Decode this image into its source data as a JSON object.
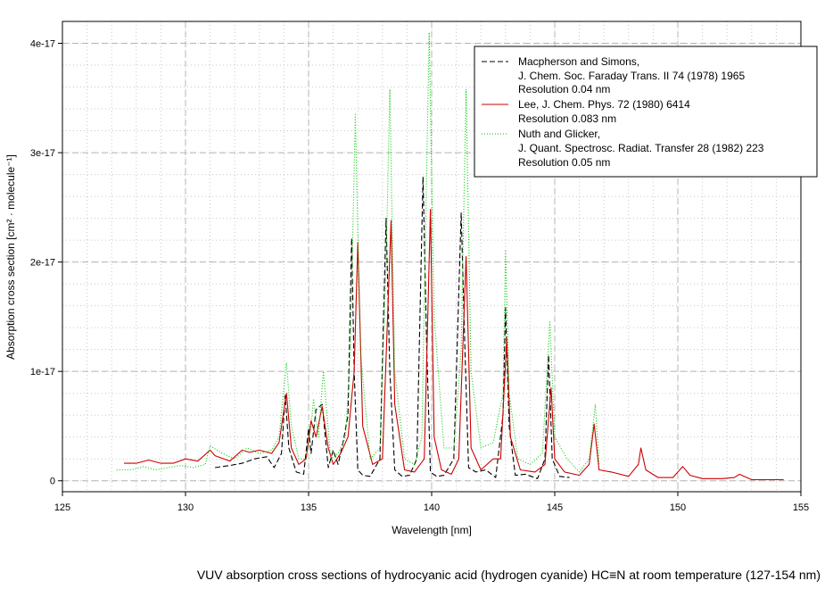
{
  "chart_data": {
    "type": "line",
    "title": "VUV absorption cross sections of hydrocyanic acid (hydrogen cyanide) HC≡N at room temperature (127-154 nm)",
    "xlabel": "Wavelength [nm]",
    "ylabel": "Absorption cross section [cm² · molecule⁻¹]",
    "xlim": [
      125,
      155
    ],
    "ylim": [
      -1e-18,
      4.2e-17
    ],
    "x_ticks": [
      125,
      130,
      135,
      140,
      145,
      150,
      155
    ],
    "x_tick_labels": [
      "125",
      "130",
      "135",
      "140",
      "145",
      "150",
      "155"
    ],
    "y_ticks": [
      0,
      1e-17,
      2e-17,
      3e-17,
      4e-17
    ],
    "y_tick_labels": [
      "0",
      "1e-17",
      "2e-17",
      "3e-17",
      "4e-17"
    ],
    "grid": true,
    "legend_position": "top-right",
    "series": [
      {
        "name": "Macpherson and Simons, J. Chem. Soc. Faraday Trans. II 74 (1978) 1965 Resolution 0.04 nm",
        "legend_lines": [
          "Macpherson and Simons,",
          "J. Chem. Soc. Faraday Trans. II 74 (1978) 1965",
          "Resolution 0.04 nm"
        ],
        "color": "#000000",
        "style": "dashed",
        "x": [
          131.2,
          131.8,
          132.3,
          132.8,
          133.3,
          133.6,
          133.9,
          134.05,
          134.2,
          134.5,
          134.8,
          135.0,
          135.1,
          135.3,
          135.55,
          135.8,
          136.0,
          136.2,
          136.4,
          136.6,
          136.75,
          136.85,
          137.0,
          137.2,
          137.5,
          137.9,
          138.15,
          138.3,
          138.5,
          138.8,
          139.1,
          139.4,
          139.65,
          139.8,
          139.95,
          140.2,
          140.5,
          140.9,
          141.2,
          141.35,
          141.5,
          141.8,
          142.2,
          142.6,
          142.9,
          143.0,
          143.15,
          143.4,
          143.8,
          144.3,
          144.6,
          144.75,
          144.9,
          145.2,
          145.6
        ],
        "y": [
          1.2e-18,
          1.4e-18,
          1.6e-18,
          2e-18,
          2.2e-18,
          1.2e-18,
          2.5e-18,
          7.8e-18,
          3e-18,
          8e-19,
          6e-19,
          4.8e-18,
          2.5e-18,
          6.5e-18,
          7e-18,
          1.2e-18,
          2.8e-18,
          1.5e-18,
          3.5e-18,
          6e-18,
          2.22e-17,
          1e-17,
          1e-18,
          5e-19,
          4e-19,
          2e-18,
          2.4e-17,
          1e-17,
          1e-18,
          4e-19,
          5e-19,
          2e-18,
          2.78e-17,
          1.2e-17,
          8e-19,
          4e-19,
          5e-19,
          2e-18,
          2.45e-17,
          1.2e-17,
          1.2e-18,
          8e-19,
          1e-18,
          3e-19,
          6e-18,
          1.58e-17,
          5e-18,
          5e-19,
          6e-19,
          2e-19,
          2e-18,
          1.15e-17,
          2e-18,
          4e-19,
          3e-19
        ]
      },
      {
        "name": "Lee, J. Chem. Phys. 72 (1980) 6414 Resolution 0.083 nm",
        "legend_lines": [
          "Lee, J. Chem. Phys. 72 (1980) 6414",
          "Resolution 0.083 nm"
        ],
        "color": "#cc0000",
        "style": "solid",
        "x": [
          127.5,
          128.0,
          128.5,
          129.0,
          129.5,
          130.0,
          130.5,
          131.0,
          131.2,
          131.8,
          132.3,
          132.6,
          133.0,
          133.5,
          133.8,
          134.1,
          134.3,
          134.6,
          134.9,
          135.1,
          135.3,
          135.55,
          135.8,
          136.0,
          136.3,
          136.6,
          136.85,
          137.0,
          137.2,
          137.6,
          138.0,
          138.35,
          138.5,
          138.9,
          139.3,
          139.7,
          139.95,
          140.1,
          140.4,
          140.8,
          141.1,
          141.4,
          141.6,
          142.0,
          142.5,
          142.8,
          143.05,
          143.2,
          143.6,
          144.2,
          144.6,
          144.85,
          145.0,
          145.4,
          146.0,
          146.4,
          146.6,
          146.8,
          147.3,
          148.0,
          148.4,
          148.5,
          148.7,
          149.2,
          149.8,
          150.2,
          150.5,
          151.0,
          151.8,
          152.3,
          152.5,
          153.0,
          154.3
        ],
        "y": [
          1.6e-18,
          1.6e-18,
          1.9e-18,
          1.6e-18,
          1.6e-18,
          2e-18,
          1.8e-18,
          2.8e-18,
          2.3e-18,
          1.8e-18,
          2.8e-18,
          2.6e-18,
          2.8e-18,
          2.5e-18,
          3.5e-18,
          8e-18,
          3e-18,
          1.5e-18,
          2e-18,
          5.5e-18,
          4e-18,
          6.8e-18,
          3e-18,
          1.5e-18,
          2.5e-18,
          4e-18,
          1e-17,
          2.18e-17,
          5e-18,
          1.5e-18,
          2e-18,
          2.38e-17,
          7e-18,
          1e-18,
          8e-19,
          2e-18,
          2.48e-17,
          4e-18,
          1e-18,
          6e-19,
          2e-18,
          2.05e-17,
          3e-18,
          1e-18,
          2e-18,
          2e-18,
          1.3e-17,
          4e-18,
          1e-18,
          8e-19,
          1.5e-18,
          8.5e-18,
          2e-18,
          8e-19,
          5e-19,
          1.5e-18,
          5.2e-18,
          1e-18,
          8e-19,
          4e-19,
          1.5e-18,
          3e-18,
          1e-18,
          3e-19,
          3e-19,
          1.3e-18,
          5e-19,
          2e-19,
          2e-19,
          3e-19,
          6e-19,
          1e-19,
          1e-19
        ]
      },
      {
        "name": "Nuth and Glicker, J. Quant. Spectrosc. Radiat. Transfer 28 (1982) 223 Resolution 0.05 nm",
        "legend_lines": [
          "Nuth and Glicker,",
          "J. Quant. Spectrosc.  Radiat. Transfer 28 (1982) 223",
          "Resolution 0.05 nm"
        ],
        "color": "#00cc00",
        "style": "dotted",
        "x": [
          127.2,
          127.8,
          128.3,
          128.8,
          129.3,
          129.8,
          130.3,
          130.8,
          131.0,
          131.5,
          132.0,
          132.5,
          133.0,
          133.5,
          133.8,
          134.1,
          134.3,
          134.6,
          134.9,
          135.1,
          135.2,
          135.4,
          135.6,
          135.9,
          136.2,
          136.5,
          136.7,
          136.9,
          137.1,
          137.5,
          137.9,
          138.15,
          138.3,
          138.5,
          138.9,
          139.3,
          139.6,
          139.9,
          140.1,
          140.5,
          140.9,
          141.2,
          141.4,
          141.6,
          142.0,
          142.5,
          142.9,
          143.0,
          143.15,
          143.5,
          144.0,
          144.5,
          144.8,
          145.0,
          145.5,
          146.0,
          146.4,
          146.65,
          146.8
        ],
        "y": [
          1e-18,
          1e-18,
          1.3e-18,
          1e-18,
          1.2e-18,
          1.4e-18,
          1.2e-18,
          1.5e-18,
          3.2e-18,
          2.5e-18,
          2e-18,
          3e-18,
          2.5e-18,
          2.8e-18,
          4e-18,
          1.08e-17,
          5e-18,
          2e-18,
          2e-18,
          5e-18,
          7.5e-18,
          4e-18,
          1e-17,
          2e-18,
          2.5e-18,
          4e-18,
          1.2e-17,
          3.35e-17,
          1.2e-17,
          2e-18,
          3e-18,
          2e-17,
          3.58e-17,
          1e-17,
          2e-18,
          1.5e-18,
          4e-18,
          4.1e-17,
          1.5e-17,
          3e-18,
          3e-18,
          1.2e-17,
          3.58e-17,
          1e-17,
          3e-18,
          3.5e-18,
          8e-18,
          2.1e-17,
          8e-18,
          2e-18,
          1.5e-18,
          2.5e-18,
          1.45e-17,
          4e-18,
          2e-18,
          8e-19,
          2e-18,
          7e-18,
          1.5e-18
        ]
      }
    ]
  }
}
